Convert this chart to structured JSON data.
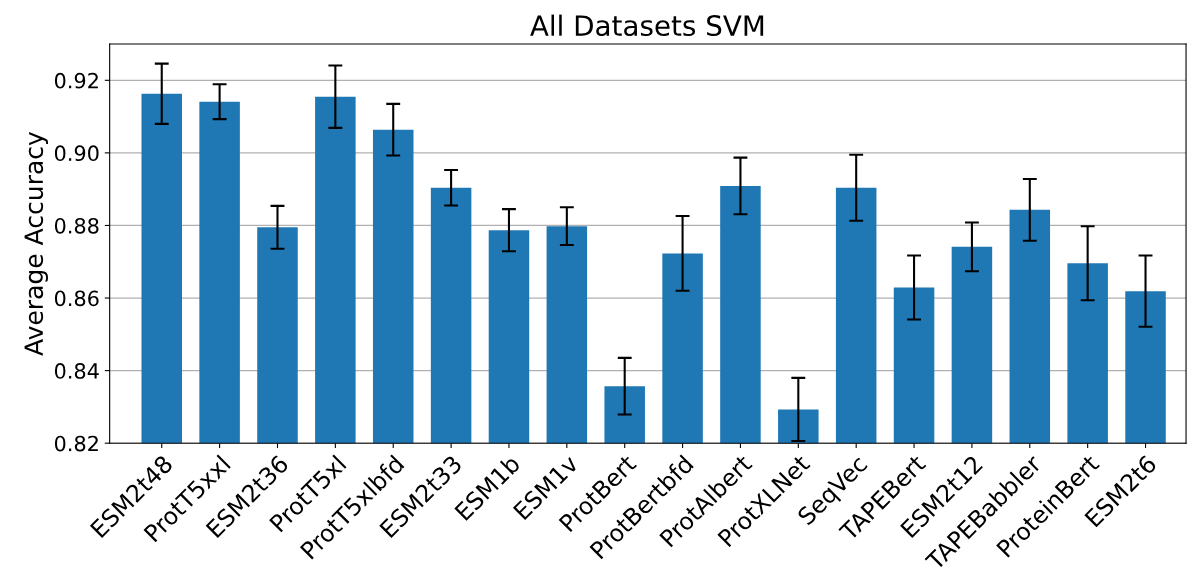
{
  "chart_data": {
    "type": "bar",
    "title": "All Datasets SVM",
    "ylabel": "Average Accuracy",
    "categories": [
      "ESM2t48",
      "ProtT5xxl",
      "ESM2t36",
      "ProtT5xl",
      "ProtT5xlbfd",
      "ESM2t33",
      "ESM1b",
      "ESM1v",
      "ProtBert",
      "ProtBertbfd",
      "ProtAlbert",
      "ProtXLNet",
      "SeqVec",
      "TAPEBert",
      "ESM2t12",
      "TAPEBabbler",
      "ProteinBert",
      "ESM2t6"
    ],
    "values": [
      0.9163,
      0.9141,
      0.8795,
      0.9155,
      0.9064,
      0.8904,
      0.8787,
      0.8798,
      0.8357,
      0.8723,
      0.8909,
      0.8293,
      0.8904,
      0.8629,
      0.8741,
      0.8843,
      0.8696,
      0.8619
    ],
    "errors": [
      0.0083,
      0.0048,
      0.0059,
      0.0086,
      0.0071,
      0.0049,
      0.0058,
      0.0052,
      0.0078,
      0.0103,
      0.0078,
      0.0087,
      0.0091,
      0.0088,
      0.0067,
      0.0085,
      0.0102,
      0.0098
    ],
    "color": "#1f77b4",
    "ylim": [
      0.82,
      0.93
    ],
    "yticks": [
      {
        "value": 0.82,
        "label": "0.82"
      },
      {
        "value": 0.84,
        "label": "0.84"
      },
      {
        "value": 0.86,
        "label": "0.86"
      },
      {
        "value": 0.88,
        "label": "0.88"
      },
      {
        "value": 0.9,
        "label": "0.90"
      },
      {
        "value": 0.92,
        "label": "0.92"
      }
    ],
    "grid": "y"
  }
}
